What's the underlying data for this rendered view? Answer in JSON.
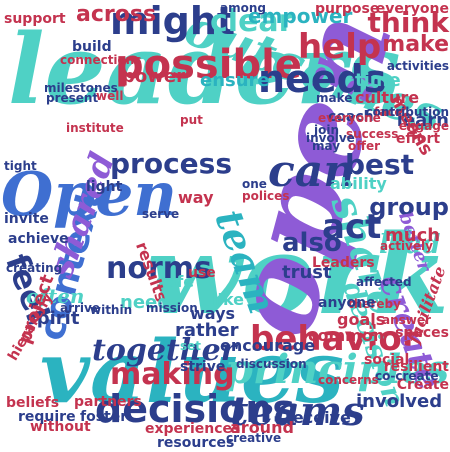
{
  "palette": {
    "teal": "#4fd1c5",
    "cyan": "#2bb3c0",
    "navy": "#2c3e8c",
    "blue": "#3f6fd1",
    "purple": "#8e5bd6",
    "crimson": "#c4334f",
    "pink": "#e0547a"
  },
  "words": [
    {
      "t": "leaders",
      "c": "teal"
    },
    {
      "t": "work",
      "c": "teal"
    },
    {
      "t": "open",
      "c": "purple"
    },
    {
      "t": "values",
      "c": "cyan"
    },
    {
      "t": "Open",
      "c": "blue"
    },
    {
      "t": "can",
      "c": "navy"
    },
    {
      "t": "outcomes",
      "c": "teal"
    },
    {
      "t": "possible",
      "c": "crimson"
    },
    {
      "t": "decisions",
      "c": "navy"
    },
    {
      "t": "teams",
      "c": "navy"
    },
    {
      "t": "principles",
      "c": "teal"
    },
    {
      "t": "behavior",
      "c": "crimson"
    },
    {
      "t": "making",
      "c": "crimson"
    },
    {
      "t": "together",
      "c": "navy"
    },
    {
      "t": "context",
      "c": "blue"
    },
    {
      "t": "might",
      "c": "navy"
    },
    {
      "t": "needs",
      "c": "navy"
    },
    {
      "t": "help",
      "c": "crimson"
    },
    {
      "t": "share",
      "c": "teal"
    },
    {
      "t": "team",
      "c": "cyan"
    },
    {
      "t": "act",
      "c": "navy"
    },
    {
      "t": "norms",
      "c": "navy"
    },
    {
      "t": "process",
      "c": "navy"
    },
    {
      "t": "feel",
      "c": "navy"
    },
    {
      "t": "clear",
      "c": "teal"
    },
    {
      "t": "think",
      "c": "crimson"
    },
    {
      "t": "make",
      "c": "crimson"
    },
    {
      "t": "best",
      "c": "navy"
    },
    {
      "t": "also",
      "c": "navy"
    },
    {
      "t": "group",
      "c": "navy"
    },
    {
      "t": "lead",
      "c": "teal"
    },
    {
      "t": "create",
      "c": "purple"
    },
    {
      "t": "decision",
      "c": "teal"
    },
    {
      "t": "shared",
      "c": "purple"
    },
    {
      "t": "across",
      "c": "crimson"
    },
    {
      "t": "empower",
      "c": "cyan"
    },
    {
      "t": "support",
      "c": "crimson"
    },
    {
      "t": "power",
      "c": "crimson"
    },
    {
      "t": "ensure",
      "c": "cyan"
    },
    {
      "t": "time",
      "c": "teal"
    },
    {
      "t": "culture",
      "c": "crimson"
    },
    {
      "t": "learn",
      "c": "navy"
    },
    {
      "t": "means",
      "c": "crimson"
    },
    {
      "t": "purpose",
      "c": "crimson"
    },
    {
      "t": "everyone",
      "c": "crimson"
    },
    {
      "t": "among",
      "c": "navy"
    },
    {
      "t": "activities",
      "c": "navy"
    },
    {
      "t": "build",
      "c": "navy"
    },
    {
      "t": "connections",
      "c": "crimson"
    },
    {
      "t": "ability",
      "c": "teal"
    },
    {
      "t": "better",
      "c": "purple"
    },
    {
      "t": "trust",
      "c": "navy"
    },
    {
      "t": "safe",
      "c": "teal"
    },
    {
      "t": "results",
      "c": "crimson"
    },
    {
      "t": "often",
      "c": "teal"
    },
    {
      "t": "spirit",
      "c": "navy"
    },
    {
      "t": "project",
      "c": "crimson"
    },
    {
      "t": "need",
      "c": "teal"
    },
    {
      "t": "ways",
      "c": "navy"
    },
    {
      "t": "rather",
      "c": "navy"
    },
    {
      "t": "like",
      "c": "teal"
    },
    {
      "t": "goals",
      "c": "crimson"
    },
    {
      "t": "encourage",
      "c": "navy"
    },
    {
      "t": "common",
      "c": "crimson"
    },
    {
      "t": "involved",
      "c": "navy"
    },
    {
      "t": "receive",
      "c": "navy"
    },
    {
      "t": "experiences",
      "c": "crimson"
    },
    {
      "t": "resources",
      "c": "navy"
    },
    {
      "t": "around",
      "c": "crimson"
    },
    {
      "t": "without",
      "c": "crimson"
    },
    {
      "t": "foster",
      "c": "navy"
    },
    {
      "t": "hierarchy",
      "c": "crimson"
    },
    {
      "t": "partners",
      "c": "crimson"
    },
    {
      "t": "beliefs",
      "c": "crimson"
    },
    {
      "t": "require",
      "c": "navy"
    },
    {
      "t": "facilitate",
      "c": "crimson"
    },
    {
      "t": "resilient",
      "c": "crimson"
    },
    {
      "t": "social",
      "c": "crimson"
    },
    {
      "t": "much",
      "c": "crimson"
    },
    {
      "t": "way",
      "c": "crimson"
    },
    {
      "t": "light",
      "c": "navy"
    },
    {
      "t": "invite",
      "c": "navy"
    },
    {
      "t": "achieve",
      "c": "navy"
    },
    {
      "t": "creating",
      "c": "navy"
    },
    {
      "t": "tight",
      "c": "navy"
    },
    {
      "t": "success",
      "c": "crimson"
    },
    {
      "t": "coach",
      "c": "navy"
    },
    {
      "t": "offer",
      "c": "crimson"
    },
    {
      "t": "join",
      "c": "navy"
    },
    {
      "t": "discussion",
      "c": "navy"
    },
    {
      "t": "effort",
      "c": "crimson"
    },
    {
      "t": "present",
      "c": "navy"
    },
    {
      "t": "milestones",
      "c": "navy"
    },
    {
      "t": "spaces",
      "c": "crimson"
    },
    {
      "t": "Create",
      "c": "crimson"
    },
    {
      "t": "co-create",
      "c": "navy"
    },
    {
      "t": "creative",
      "c": "navy"
    },
    {
      "t": "well",
      "c": "crimson"
    },
    {
      "t": "face",
      "c": "crimson"
    },
    {
      "t": "put",
      "c": "crimson"
    },
    {
      "t": "may",
      "c": "navy"
    },
    {
      "t": "one",
      "c": "navy"
    },
    {
      "t": "polices",
      "c": "crimson"
    },
    {
      "t": "thereby",
      "c": "crimson"
    },
    {
      "t": "affected",
      "c": "navy"
    },
    {
      "t": "actively",
      "c": "crimson"
    },
    {
      "t": "concerns",
      "c": "crimson"
    },
    {
      "t": "strive",
      "c": "navy"
    },
    {
      "t": "anyone",
      "c": "navy"
    },
    {
      "t": "answer",
      "c": "crimson"
    },
    {
      "t": "use",
      "c": "crimson"
    },
    {
      "t": "set",
      "c": "teal"
    },
    {
      "t": "involve",
      "c": "navy"
    },
    {
      "t": "institute",
      "c": "crimson"
    },
    {
      "t": "contribution",
      "c": "navy"
    },
    {
      "t": "serve",
      "c": "navy"
    },
    {
      "t": "Leaders",
      "c": "crimson"
    },
    {
      "t": "mission",
      "c": "navy"
    },
    {
      "t": "arrive",
      "c": "navy"
    },
    {
      "t": "make",
      "c": "navy"
    },
    {
      "t": "everyone",
      "c": "crimson"
    },
    {
      "t": "within",
      "c": "navy"
    },
    {
      "t": "engage",
      "c": "crimson"
    }
  ]
}
